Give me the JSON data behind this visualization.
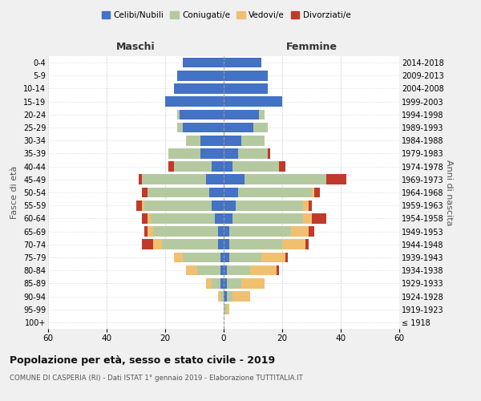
{
  "age_groups": [
    "100+",
    "95-99",
    "90-94",
    "85-89",
    "80-84",
    "75-79",
    "70-74",
    "65-69",
    "60-64",
    "55-59",
    "50-54",
    "45-49",
    "40-44",
    "35-39",
    "30-34",
    "25-29",
    "20-24",
    "15-19",
    "10-14",
    "5-9",
    "0-4"
  ],
  "birth_years": [
    "≤ 1918",
    "1919-1923",
    "1924-1928",
    "1929-1933",
    "1934-1938",
    "1939-1943",
    "1944-1948",
    "1949-1953",
    "1954-1958",
    "1959-1963",
    "1964-1968",
    "1969-1973",
    "1974-1978",
    "1979-1983",
    "1984-1988",
    "1989-1993",
    "1994-1998",
    "1999-2003",
    "2004-2008",
    "2009-2013",
    "2014-2018"
  ],
  "male_celibi": [
    0,
    0,
    0,
    1,
    1,
    1,
    2,
    2,
    3,
    4,
    5,
    6,
    4,
    8,
    8,
    14,
    15,
    20,
    17,
    16,
    14
  ],
  "male_coniugati": [
    0,
    0,
    1,
    3,
    8,
    13,
    19,
    22,
    22,
    23,
    21,
    22,
    13,
    11,
    5,
    2,
    1,
    0,
    0,
    0,
    0
  ],
  "male_vedovi": [
    0,
    0,
    1,
    2,
    4,
    3,
    3,
    2,
    1,
    1,
    0,
    0,
    0,
    0,
    0,
    0,
    0,
    0,
    0,
    0,
    0
  ],
  "male_divorziati": [
    0,
    0,
    0,
    0,
    0,
    0,
    4,
    1,
    2,
    2,
    2,
    1,
    2,
    0,
    0,
    0,
    0,
    0,
    0,
    0,
    0
  ],
  "female_celibi": [
    0,
    0,
    1,
    1,
    1,
    2,
    2,
    2,
    3,
    4,
    5,
    7,
    3,
    5,
    6,
    10,
    12,
    20,
    15,
    15,
    13
  ],
  "female_coniugati": [
    0,
    1,
    2,
    5,
    8,
    11,
    18,
    21,
    24,
    23,
    25,
    28,
    16,
    10,
    8,
    5,
    2,
    0,
    0,
    0,
    0
  ],
  "female_vedovi": [
    0,
    1,
    6,
    8,
    9,
    8,
    8,
    6,
    3,
    2,
    1,
    0,
    0,
    0,
    0,
    0,
    0,
    0,
    0,
    0,
    0
  ],
  "female_divorziati": [
    0,
    0,
    0,
    0,
    1,
    1,
    1,
    2,
    5,
    1,
    2,
    7,
    2,
    1,
    0,
    0,
    0,
    0,
    0,
    0,
    0
  ],
  "colors": {
    "celibi": "#4472c4",
    "coniugati": "#b5c9a0",
    "vedovi": "#f0c070",
    "divorziati": "#c0392b"
  },
  "title": "Popolazione per età, sesso e stato civile - 2019",
  "subtitle": "COMUNE DI CASPERIA (RI) - Dati ISTAT 1° gennaio 2019 - Elaborazione TUTTITALIA.IT",
  "xlabel_left": "Maschi",
  "xlabel_right": "Femmine",
  "ylabel_left": "Fasce di età",
  "ylabel_right": "Anni di nascita",
  "xlim": 60,
  "background_color": "#f0f0f0",
  "plot_background": "#ffffff",
  "legend_labels": [
    "Celibi/Nubili",
    "Coniugati/e",
    "Vedovi/e",
    "Divorziati/e"
  ]
}
